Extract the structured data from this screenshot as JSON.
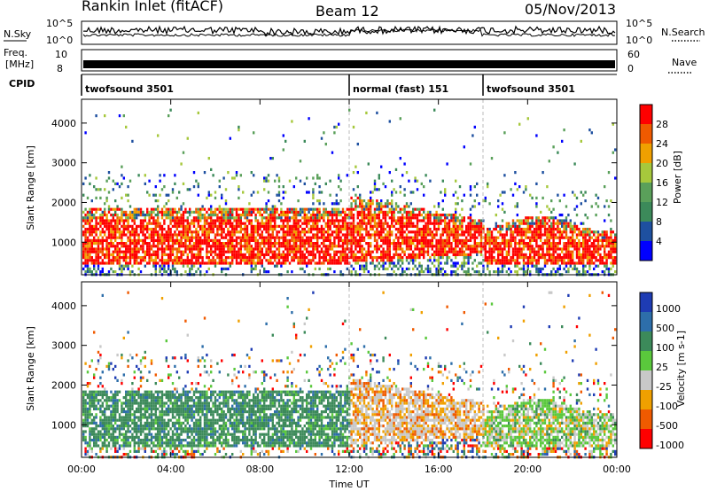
{
  "header": {
    "station": "Rankin Inlet (fitACF)",
    "beam": "Beam 12",
    "date": "05/Nov/2013"
  },
  "noise_panel": {
    "left_label": "N.Sky",
    "right_label": "N.Search",
    "left_ticks": [
      "10^5",
      "10^0"
    ],
    "right_ticks": [
      "10^5",
      "10^0"
    ]
  },
  "freq_panel": {
    "left_label_1": "Freq.",
    "left_label_2": "[MHz]",
    "right_label": "Nave",
    "left_ticks": [
      "10",
      "8"
    ],
    "right_ticks": [
      "60",
      "0"
    ]
  },
  "cpid_panel": {
    "label": "CPID",
    "segments": [
      {
        "name": "twofsound 3501",
        "start_hour": 0,
        "end_hour": 12
      },
      {
        "name": "normal (fast) 151",
        "start_hour": 12,
        "end_hour": 18
      },
      {
        "name": "twofsound 3501",
        "start_hour": 18,
        "end_hour": 24
      }
    ]
  },
  "x_axis": {
    "label": "Time UT",
    "ticks": [
      "00:00",
      "04:00",
      "08:00",
      "12:00",
      "16:00",
      "20:00",
      "00:00"
    ],
    "range_hours": [
      0,
      24
    ]
  },
  "power_panel": {
    "ylabel": "Slant Range [km]",
    "y_ticks": [
      "1000",
      "2000",
      "3000",
      "4000"
    ],
    "colorbar_label": "Power [dB]",
    "colorbar_ticks": [
      "4",
      "8",
      "12",
      "16",
      "20",
      "24",
      "28"
    ],
    "colors": [
      "#0000ff",
      "#1e50a0",
      "#3c8a5a",
      "#5aa05a",
      "#a6c83c",
      "#f0a000",
      "#f05a00",
      "#ff0000"
    ]
  },
  "velocity_panel": {
    "ylabel": "Slant Range [km]",
    "y_ticks": [
      "1000",
      "2000",
      "3000",
      "4000"
    ],
    "colorbar_label": "Velocity [m s-1]",
    "colorbar_ticks": [
      "1000",
      "500",
      "100",
      "25",
      "-25",
      "-100",
      "-500",
      "-1000"
    ],
    "colors": [
      "#1e3cb4",
      "#2d6eaa",
      "#3c8a5a",
      "#5ac83c",
      "#c8c8c8",
      "#f0a000",
      "#f05a00",
      "#ff0000"
    ]
  },
  "chart_data": [
    {
      "type": "heatmap",
      "title": "Power",
      "xlabel": "Time UT",
      "ylabel": "Slant Range [km]",
      "xlim": [
        0,
        24
      ],
      "ylim": [
        180,
        4600
      ],
      "colorbar": "Power [dB]",
      "colorbar_range": [
        0,
        30
      ],
      "band_features": [
        {
          "hours": [
            0,
            12
          ],
          "range_km": [
            500,
            2000
          ],
          "dominant_db": 26
        },
        {
          "hours": [
            12,
            18
          ],
          "range_km": [
            600,
            1700
          ],
          "dominant_db": 24
        },
        {
          "hours": [
            18,
            24
          ],
          "range_km": [
            600,
            1700
          ],
          "dominant_db": 28
        }
      ]
    },
    {
      "type": "heatmap",
      "title": "Velocity",
      "xlabel": "Time UT",
      "ylabel": "Slant Range [km]",
      "xlim": [
        0,
        24
      ],
      "ylim": [
        180,
        4600
      ],
      "colorbar": "Velocity [m s-1]",
      "colorbar_levels": [
        1000,
        500,
        100,
        25,
        -25,
        -100,
        -500,
        -1000
      ],
      "band_features": [
        {
          "hours": [
            0,
            12
          ],
          "range_km": [
            500,
            2000
          ],
          "dominant_ms": 100
        },
        {
          "hours": [
            12,
            18
          ],
          "range_km": [
            500,
            1700
          ],
          "dominant_ms": -100
        },
        {
          "hours": [
            18,
            24
          ],
          "range_km": [
            600,
            1800
          ],
          "dominant_ms": 50
        }
      ]
    }
  ]
}
